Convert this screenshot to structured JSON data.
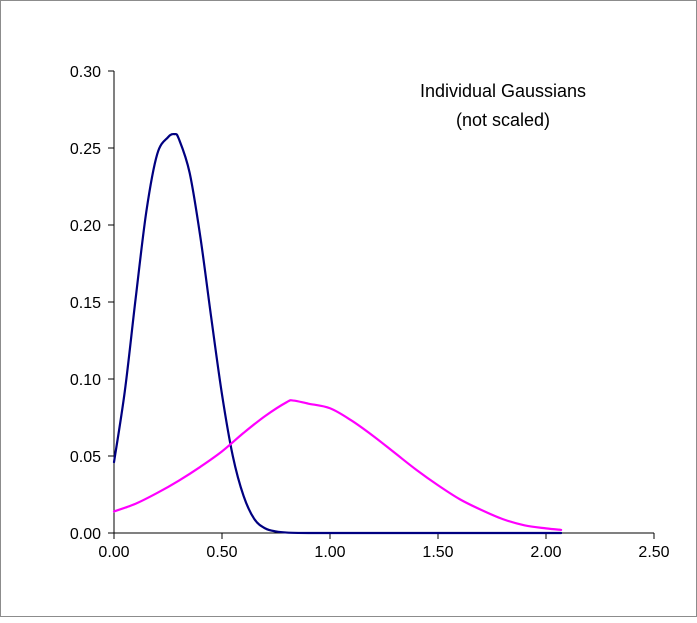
{
  "chart_data": {
    "type": "line",
    "title": "Individual Gaussians",
    "subtitle": "(not scaled)",
    "xlabel": "",
    "ylabel": "",
    "xlim": [
      0,
      2.5
    ],
    "ylim": [
      0,
      0.3
    ],
    "x_ticks": [
      "0.00",
      "0.50",
      "1.00",
      "1.50",
      "2.00",
      "2.50"
    ],
    "y_ticks": [
      "0.00",
      "0.05",
      "0.10",
      "0.15",
      "0.20",
      "0.25",
      "0.30"
    ],
    "grid": false,
    "legend": "none",
    "series": [
      {
        "color": "#000080",
        "x": [
          0.0,
          0.05,
          0.1,
          0.15,
          0.2,
          0.25,
          0.28,
          0.3,
          0.35,
          0.4,
          0.45,
          0.5,
          0.55,
          0.6,
          0.65,
          0.7,
          0.75,
          0.8,
          0.9,
          1.0,
          1.25,
          1.5,
          1.75,
          2.0,
          2.07
        ],
        "y": [
          0.046,
          0.092,
          0.152,
          0.209,
          0.246,
          0.257,
          0.259,
          0.256,
          0.234,
          0.192,
          0.14,
          0.09,
          0.05,
          0.024,
          0.009,
          0.003,
          0.001,
          0.0003,
          0.0,
          0.0,
          0.0,
          0.0,
          0.0,
          0.0,
          0.0
        ]
      },
      {
        "color": "#ff00ff",
        "x": [
          0.0,
          0.1,
          0.2,
          0.3,
          0.4,
          0.5,
          0.6,
          0.7,
          0.8,
          0.83,
          0.9,
          1.0,
          1.1,
          1.2,
          1.3,
          1.4,
          1.5,
          1.6,
          1.7,
          1.8,
          1.9,
          2.0,
          2.07
        ],
        "y": [
          0.014,
          0.019,
          0.026,
          0.034,
          0.043,
          0.053,
          0.065,
          0.076,
          0.085,
          0.086,
          0.084,
          0.081,
          0.073,
          0.063,
          0.052,
          0.041,
          0.031,
          0.022,
          0.015,
          0.009,
          0.005,
          0.003,
          0.002
        ]
      }
    ]
  }
}
